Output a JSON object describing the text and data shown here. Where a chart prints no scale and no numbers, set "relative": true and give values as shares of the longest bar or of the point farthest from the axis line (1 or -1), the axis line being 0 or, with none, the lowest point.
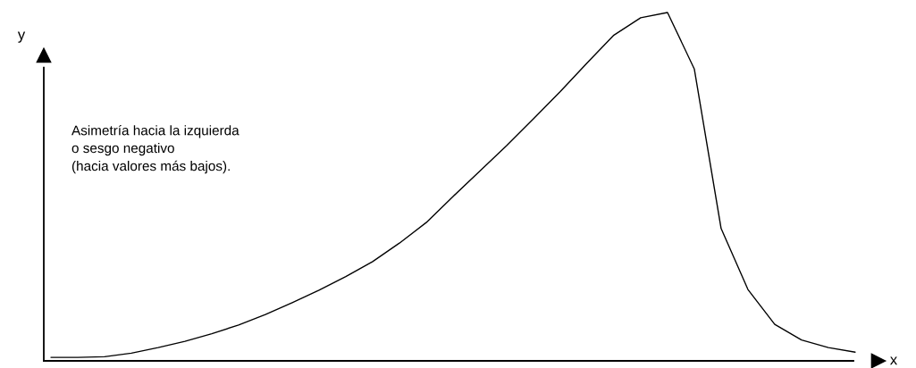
{
  "chart_data": {
    "type": "line",
    "relative": true,
    "xlabel": "x",
    "ylabel": "y",
    "marker": "none",
    "line_style": "solid",
    "grid": false,
    "annotations": [
      "Asimetría hacia la izquierda\no sesgo negativo\n(hacia valores más bajos)."
    ],
    "categories": [
      null,
      null,
      null,
      null,
      null,
      null,
      null,
      null,
      null,
      null,
      null,
      null,
      null,
      null,
      null,
      null,
      null,
      null,
      null,
      null,
      null,
      null,
      null,
      null,
      null,
      null,
      null,
      null,
      null,
      null,
      null
    ],
    "series": [
      {
        "color": "#000000",
        "values": [
          0.01,
          0.01,
          0.012,
          0.022,
          0.038,
          0.056,
          0.078,
          0.103,
          0.133,
          0.167,
          0.203,
          0.242,
          0.285,
          0.338,
          0.397,
          0.472,
          0.545,
          0.618,
          0.695,
          0.773,
          0.855,
          0.935,
          0.985,
          1,
          0.838,
          0.38,
          0.205,
          0.105,
          0.06,
          0.038,
          0.025
        ]
      }
    ]
  }
}
